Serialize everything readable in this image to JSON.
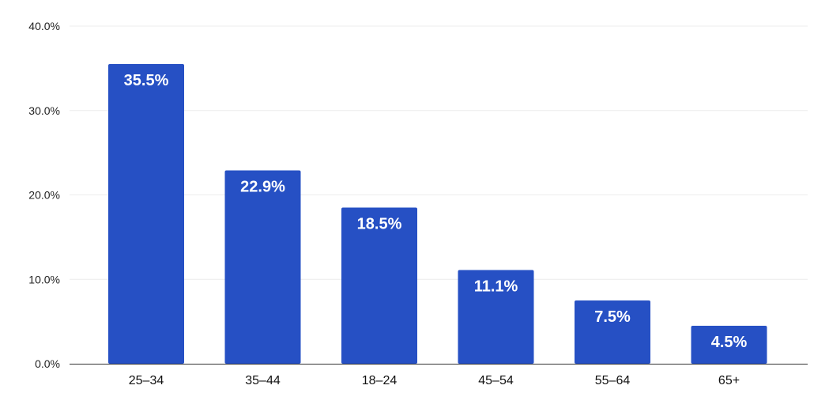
{
  "chart_data": {
    "type": "bar",
    "categories": [
      "25–34",
      "35–44",
      "18–24",
      "45–54",
      "55–64",
      "65+"
    ],
    "values": [
      35.5,
      22.9,
      18.5,
      11.1,
      7.5,
      4.5
    ],
    "data_labels": [
      "35.5%",
      "22.9%",
      "18.5%",
      "11.1%",
      "7.5%",
      "4.5%"
    ],
    "y_ticks": [
      0,
      10,
      20,
      30,
      40
    ],
    "y_tick_labels": [
      "0.0%",
      "10.0%",
      "20.0%",
      "30.0%",
      "40.0%"
    ],
    "ylim": [
      0,
      40
    ],
    "title": "",
    "xlabel": "",
    "ylabel": "",
    "grid": true,
    "legend": "none",
    "bar_color": "#2650c4"
  }
}
